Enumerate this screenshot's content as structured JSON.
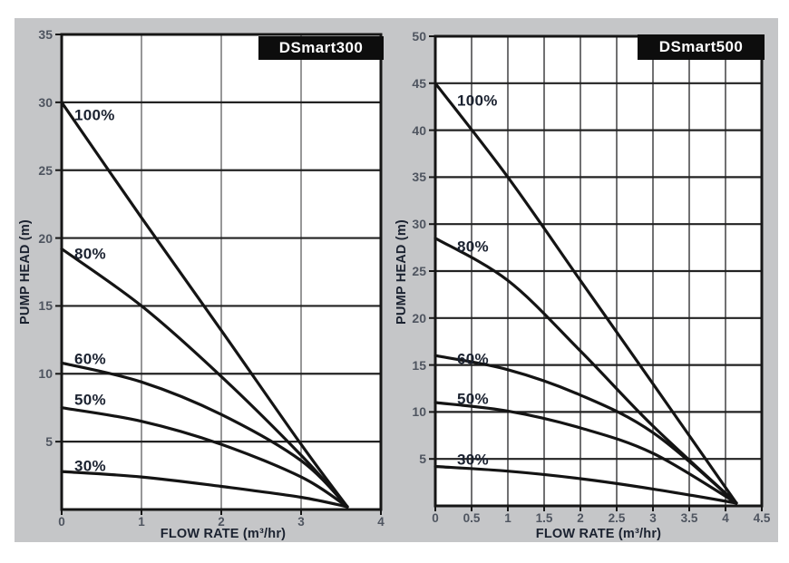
{
  "colors": {
    "panel_bg": "#c5c6c8",
    "plot_bg": "#ffffff",
    "border": "#161616",
    "curve": "#141414",
    "title_box": "#0d0d0d",
    "title_text": "#ffffff",
    "tick_text": "#4f5560",
    "label_text": "#1b2230"
  },
  "chart_data": [
    {
      "type": "line",
      "title": "DSmart300",
      "xlabel": "FLOW RATE (m³/hr)",
      "ylabel": "PUMP HEAD (m)",
      "xlim": [
        0,
        4
      ],
      "ylim": [
        0,
        35
      ],
      "grid": true,
      "legend_position": "inline-curve-labels",
      "xtick_labels": [
        "0",
        "1",
        "2",
        "3",
        "4"
      ],
      "xtick_values": [
        0,
        1,
        2,
        3,
        4
      ],
      "ytick_labels": [
        "35",
        "30",
        "25",
        "20",
        "15",
        "10",
        "5"
      ],
      "ytick_values": [
        35,
        30,
        25,
        20,
        15,
        10,
        5
      ],
      "x_grid_step": 1,
      "y_grid_step": 5,
      "series": [
        {
          "name": "100%",
          "points": [
            [
              0,
              30
            ],
            [
              1,
              21.5
            ],
            [
              2,
              13.2
            ],
            [
              3,
              4.8
            ],
            [
              3.58,
              0.2
            ]
          ]
        },
        {
          "name": "80%",
          "points": [
            [
              0,
              19.2
            ],
            [
              1,
              15.0
            ],
            [
              2,
              9.8
            ],
            [
              3,
              4.0
            ],
            [
              3.58,
              0.2
            ]
          ]
        },
        {
          "name": "60%",
          "points": [
            [
              0,
              10.8
            ],
            [
              1,
              9.4
            ],
            [
              2,
              7.0
            ],
            [
              3,
              3.6
            ],
            [
              3.58,
              0.2
            ]
          ]
        },
        {
          "name": "50%",
          "points": [
            [
              0,
              7.5
            ],
            [
              1,
              6.5
            ],
            [
              2,
              4.8
            ],
            [
              3,
              2.4
            ],
            [
              3.58,
              0.2
            ]
          ]
        },
        {
          "name": "30%",
          "points": [
            [
              0,
              2.8
            ],
            [
              1,
              2.4
            ],
            [
              2,
              1.7
            ],
            [
              3,
              0.9
            ],
            [
              3.58,
              0.2
            ]
          ]
        }
      ]
    },
    {
      "type": "line",
      "title": "DSmart500",
      "xlabel": "FLOW RATE (m³/hr)",
      "ylabel": "PUMP HEAD (m)",
      "xlim": [
        0,
        4.5
      ],
      "ylim": [
        0,
        50
      ],
      "grid": true,
      "legend_position": "inline-curve-labels",
      "xtick_labels": [
        "0",
        "0.5",
        "1",
        "1.5",
        "2",
        "2.5",
        "3",
        "3.5",
        "4",
        "4.5"
      ],
      "xtick_values": [
        0,
        0.5,
        1,
        1.5,
        2,
        2.5,
        3,
        3.5,
        4,
        4.5
      ],
      "ytick_labels": [
        "50",
        "45",
        "40",
        "35",
        "30",
        "25",
        "20",
        "15",
        "10",
        "5"
      ],
      "ytick_values": [
        50,
        45,
        40,
        35,
        30,
        25,
        20,
        15,
        10,
        5
      ],
      "x_grid_step": 0.5,
      "y_grid_step": 5,
      "series": [
        {
          "name": "100%",
          "points": [
            [
              0,
              45
            ],
            [
              1,
              35.0
            ],
            [
              2,
              24.0
            ],
            [
              3,
              13.0
            ],
            [
              4.15,
              0.3
            ]
          ]
        },
        {
          "name": "80%",
          "points": [
            [
              0,
              28.5
            ],
            [
              1,
              24.0
            ],
            [
              2,
              16.5
            ],
            [
              3,
              8.5
            ],
            [
              4.15,
              0.3
            ]
          ]
        },
        {
          "name": "60%",
          "points": [
            [
              0,
              16.0
            ],
            [
              1,
              14.5
            ],
            [
              2,
              11.8
            ],
            [
              3,
              7.8
            ],
            [
              4.15,
              0.3
            ]
          ]
        },
        {
          "name": "50%",
          "points": [
            [
              0,
              11.0
            ],
            [
              1,
              10.1
            ],
            [
              2,
              8.3
            ],
            [
              3,
              5.6
            ],
            [
              4.15,
              0.3
            ]
          ]
        },
        {
          "name": "30%",
          "points": [
            [
              0,
              4.2
            ],
            [
              1,
              3.7
            ],
            [
              2,
              2.9
            ],
            [
              3,
              1.8
            ],
            [
              4.15,
              0.3
            ]
          ]
        }
      ]
    }
  ]
}
